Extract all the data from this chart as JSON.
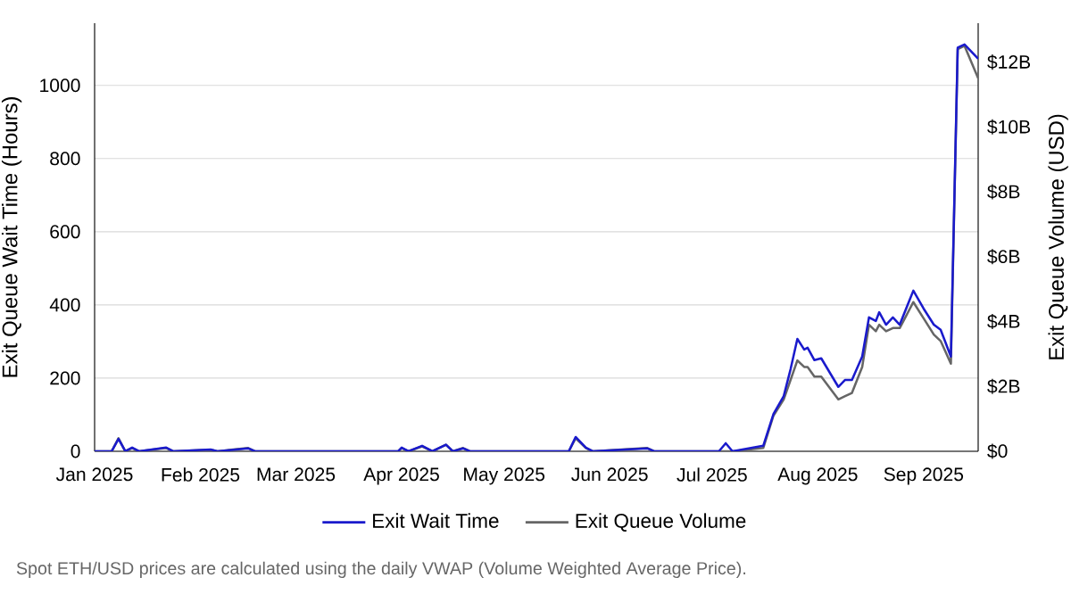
{
  "chart_data": {
    "type": "line",
    "x": [
      "2025-01-01",
      "2025-01-06",
      "2025-01-08",
      "2025-01-10",
      "2025-01-12",
      "2025-01-14",
      "2025-01-22",
      "2025-01-24",
      "2025-02-04",
      "2025-02-06",
      "2025-02-15",
      "2025-02-17",
      "2025-03-31",
      "2025-04-01",
      "2025-04-03",
      "2025-04-07",
      "2025-04-10",
      "2025-04-14",
      "2025-04-16",
      "2025-04-19",
      "2025-04-21",
      "2025-05-20",
      "2025-05-22",
      "2025-05-25",
      "2025-05-27",
      "2025-06-12",
      "2025-06-14",
      "2025-07-03",
      "2025-07-05",
      "2025-07-07",
      "2025-07-16",
      "2025-07-19",
      "2025-07-22",
      "2025-07-24",
      "2025-07-26",
      "2025-07-28",
      "2025-07-29",
      "2025-07-31",
      "2025-08-02",
      "2025-08-07",
      "2025-08-09",
      "2025-08-11",
      "2025-08-14",
      "2025-08-16",
      "2025-08-18",
      "2025-08-19",
      "2025-08-21",
      "2025-08-23",
      "2025-08-25",
      "2025-08-29",
      "2025-09-01",
      "2025-09-04",
      "2025-09-06",
      "2025-09-09",
      "2025-09-11",
      "2025-09-13",
      "2025-09-17"
    ],
    "series": [
      {
        "name": "Exit Wait Time",
        "color": "#1a1acc",
        "values": [
          0,
          0,
          34,
          0,
          10,
          0,
          10,
          0,
          5,
          0,
          8,
          0,
          0,
          10,
          0,
          15,
          0,
          18,
          0,
          8,
          0,
          0,
          39,
          10,
          0,
          8,
          0,
          0,
          22,
          0,
          15,
          102,
          151,
          224,
          307,
          278,
          283,
          249,
          254,
          176,
          195,
          195,
          259,
          366,
          356,
          380,
          346,
          366,
          346,
          439,
          390,
          346,
          332,
          259,
          1103,
          1112,
          1073
        ]
      },
      {
        "name": "Exit Queue Volume",
        "color": "#666666",
        "axis": "y2",
        "values": [
          0,
          0,
          0.4,
          0,
          0.1,
          0,
          0.1,
          0,
          0.05,
          0,
          0.1,
          0,
          0,
          0.1,
          0,
          0.15,
          0,
          0.2,
          0,
          0.1,
          0,
          0,
          0.4,
          0.1,
          0,
          0.1,
          0,
          0,
          null,
          0,
          0.1,
          1.1,
          1.6,
          2.2,
          2.8,
          2.6,
          2.6,
          2.3,
          2.3,
          1.6,
          1.7,
          1.8,
          2.6,
          3.9,
          3.7,
          3.9,
          3.7,
          3.8,
          3.8,
          4.6,
          4.1,
          3.6,
          3.4,
          2.7,
          12.4,
          12.5,
          11.5
        ]
      }
    ],
    "xlim": [
      "2025-01-01",
      "2025-09-17"
    ],
    "xticks": [
      {
        "value": "2025-01-01",
        "label": "Jan 2025"
      },
      {
        "value": "2025-02-01",
        "label": "Feb 2025"
      },
      {
        "value": "2025-03-01",
        "label": "Mar 2025"
      },
      {
        "value": "2025-04-01",
        "label": "Apr 2025"
      },
      {
        "value": "2025-05-01",
        "label": "May 2025"
      },
      {
        "value": "2025-06-01",
        "label": "Jun 2025"
      },
      {
        "value": "2025-07-01",
        "label": "Jul 2025"
      },
      {
        "value": "2025-08-01",
        "label": "Aug 2025"
      },
      {
        "value": "2025-09-01",
        "label": "Sep 2025"
      }
    ],
    "ylim": [
      0,
      1170
    ],
    "yticks": [
      0,
      200,
      400,
      600,
      800,
      1000
    ],
    "y2lim": [
      0,
      13.2
    ],
    "y2ticks": [
      {
        "value": 0,
        "label": "$0"
      },
      {
        "value": 2,
        "label": "$2B"
      },
      {
        "value": 4,
        "label": "$4B"
      },
      {
        "value": 6,
        "label": "$6B"
      },
      {
        "value": 8,
        "label": "$8B"
      },
      {
        "value": 10,
        "label": "$10B"
      },
      {
        "value": 12,
        "label": "$12B"
      }
    ],
    "ylabel": "Exit Queue Wait Time (Hours)",
    "y2label": "Exit Queue Volume (USD)",
    "grid": "y",
    "legend": "bottom",
    "marker": "none",
    "line_style": "solid",
    "annotations": [
      "Spot ETH/USD prices are calculated using the daily VWAP (Volume Weighted Average Price)."
    ]
  }
}
